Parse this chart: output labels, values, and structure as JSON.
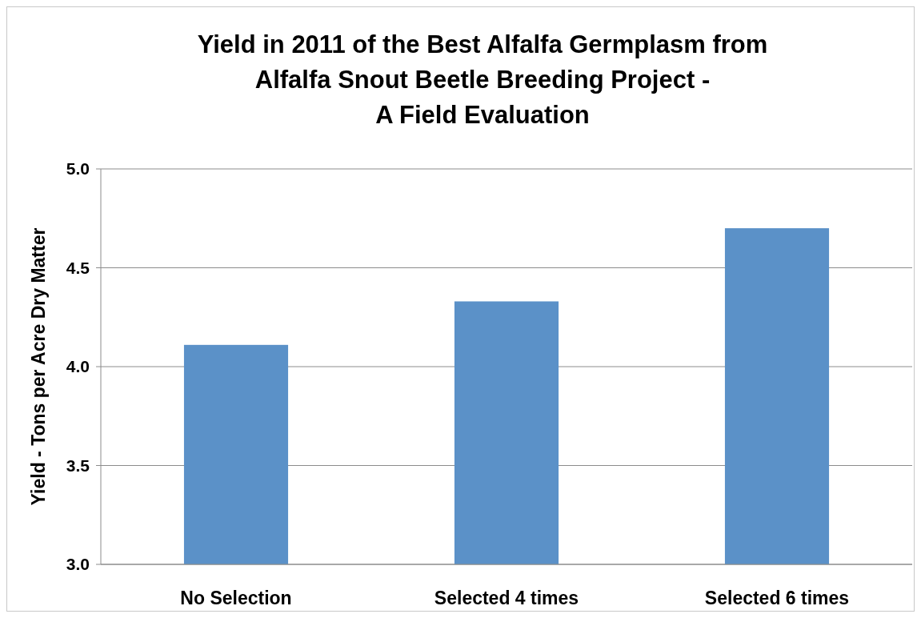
{
  "chart_data": {
    "type": "bar",
    "title": "Yield in 2011 of the Best Alfalfa Germplasm from\nAlfalfa Snout Beetle Breeding Project -\nA Field Evaluation",
    "ylabel": "Yield - Tons per Acre Dry Matter",
    "categories": [
      "No Selection",
      "Selected 4 times",
      "Selected 6 times"
    ],
    "values": [
      4.11,
      4.33,
      4.7
    ],
    "color": "#5b91c8",
    "ylim": [
      3.0,
      5.0
    ],
    "yticks": [
      {
        "value": 3.0,
        "label": "3.0"
      },
      {
        "value": 3.5,
        "label": "3.5"
      },
      {
        "value": 4.0,
        "label": "4.0"
      },
      {
        "value": 4.5,
        "label": "4.5"
      },
      {
        "value": 5.0,
        "label": "5.0"
      }
    ],
    "grid": "y"
  }
}
